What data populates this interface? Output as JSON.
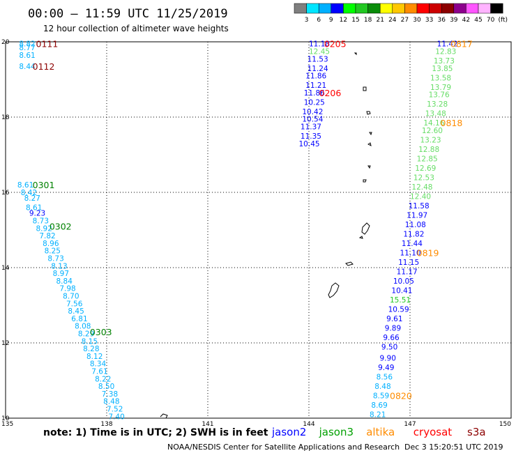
{
  "header": {
    "title": "00:00 – 11:59 UTC 11/25/2019",
    "subtitle": "12 hour collection of altimeter wave heights"
  },
  "scale": {
    "labels": [
      "3",
      "6",
      "9",
      "12",
      "15",
      "18",
      "21",
      "24",
      "27",
      "30",
      "33",
      "36",
      "39",
      "42",
      "45",
      "70"
    ],
    "unit": "(ft)",
    "colors": [
      "#7f7f7f",
      "#00e5ff",
      "#00b0ff",
      "#0000ff",
      "#00ff00",
      "#22c822",
      "#0a8c0a",
      "#ffff00",
      "#ffc800",
      "#ff8c00",
      "#ff0000",
      "#cc0000",
      "#8c0000",
      "#8c008c",
      "#ff55ff",
      "#ffb4ff",
      "#000000"
    ]
  },
  "axes": {
    "lon_labels": [
      "135",
      "138",
      "141",
      "144",
      "147",
      "150"
    ],
    "lat_labels": [
      "20",
      "18",
      "16",
      "14",
      "12",
      "10"
    ],
    "lon_range": [
      135,
      150
    ],
    "lat_range": [
      10,
      20
    ]
  },
  "footer": {
    "note": "note:  1) Time is in UTC;  2) SWH is in feet",
    "legend": [
      {
        "name": "jason2",
        "color": "#0000ff"
      },
      {
        "name": "jason3",
        "color": "#00a000"
      },
      {
        "name": "altika",
        "color": "#ff8c00"
      },
      {
        "name": "cryosat",
        "color": "#ff0000"
      },
      {
        "name": "s3a",
        "color": "#8c0000"
      }
    ],
    "credit": "NOAA/NESDIS Center for Satellite Applications and Research",
    "timestamp": "Dec  3 15:20:51 UTC 2019"
  },
  "chart_data": {
    "type": "scatter",
    "tracks": [
      {
        "time": "0111",
        "time_color": "#8c0000",
        "time_lon": 135.9,
        "time_lat": 19.95,
        "points": [
          {
            "lon": 135.4,
            "lat": 19.95,
            "v": "8.82",
            "color": "#00b0ff"
          },
          {
            "lon": 135.4,
            "lat": 19.85,
            "v": "8.77",
            "color": "#00b0ff"
          },
          {
            "lon": 135.4,
            "lat": 19.65,
            "v": "8.61",
            "color": "#00b0ff"
          },
          {
            "lon": 135.4,
            "lat": 19.35,
            "v": "8.44",
            "color": "#00b0ff"
          }
        ]
      },
      {
        "time": "0112",
        "time_color": "#8c0000",
        "time_lon": 135.8,
        "time_lat": 19.35,
        "points": []
      },
      {
        "time": "0301",
        "time_color": "#008000",
        "time_lon": 135.8,
        "time_lat": 16.2,
        "points": [
          {
            "lon": 135.35,
            "lat": 16.2,
            "v": "8.61",
            "color": "#00b0ff"
          },
          {
            "lon": 135.45,
            "lat": 16.0,
            "v": "8.42",
            "color": "#00b0ff"
          },
          {
            "lon": 135.55,
            "lat": 15.85,
            "v": "8.27",
            "color": "#00b0ff"
          },
          {
            "lon": 135.6,
            "lat": 15.6,
            "v": "8.61",
            "color": "#00b0ff"
          },
          {
            "lon": 135.7,
            "lat": 15.45,
            "v": "9.23",
            "color": "#0000ff"
          },
          {
            "lon": 135.8,
            "lat": 15.25,
            "v": "8.73",
            "color": "#00b0ff"
          }
        ]
      },
      {
        "time": "0302",
        "time_color": "#008000",
        "time_lon": 136.3,
        "time_lat": 15.1,
        "points": [
          {
            "lon": 135.9,
            "lat": 15.05,
            "v": "8.92",
            "color": "#00b0ff"
          },
          {
            "lon": 136.0,
            "lat": 14.85,
            "v": "7.82",
            "color": "#00b0ff"
          },
          {
            "lon": 136.1,
            "lat": 14.65,
            "v": "8.96",
            "color": "#00b0ff"
          },
          {
            "lon": 136.15,
            "lat": 14.45,
            "v": "8.25",
            "color": "#00b0ff"
          },
          {
            "lon": 136.25,
            "lat": 14.25,
            "v": "8.73",
            "color": "#00b0ff"
          },
          {
            "lon": 136.35,
            "lat": 14.05,
            "v": "8.13",
            "color": "#00b0ff"
          },
          {
            "lon": 136.4,
            "lat": 13.85,
            "v": "8.97",
            "color": "#00b0ff"
          },
          {
            "lon": 136.5,
            "lat": 13.65,
            "v": "8.84",
            "color": "#00b0ff"
          },
          {
            "lon": 136.6,
            "lat": 13.45,
            "v": "7.98",
            "color": "#00b0ff"
          },
          {
            "lon": 136.7,
            "lat": 13.25,
            "v": "8.70",
            "color": "#00b0ff"
          },
          {
            "lon": 136.8,
            "lat": 13.05,
            "v": "7.56",
            "color": "#00b0ff"
          },
          {
            "lon": 136.85,
            "lat": 12.85,
            "v": "8.45",
            "color": "#00b0ff"
          },
          {
            "lon": 136.95,
            "lat": 12.65,
            "v": "6.81",
            "color": "#00b0ff"
          },
          {
            "lon": 137.05,
            "lat": 12.45,
            "v": "8.08",
            "color": "#00b0ff"
          }
        ]
      },
      {
        "time": "0303",
        "time_color": "#008000",
        "time_lon": 137.5,
        "time_lat": 12.3,
        "points": [
          {
            "lon": 137.15,
            "lat": 12.25,
            "v": "8.29",
            "color": "#00b0ff"
          },
          {
            "lon": 137.25,
            "lat": 12.05,
            "v": "8.15",
            "color": "#00b0ff"
          },
          {
            "lon": 137.3,
            "lat": 11.85,
            "v": "8.28",
            "color": "#00b0ff"
          },
          {
            "lon": 137.4,
            "lat": 11.65,
            "v": "8.12",
            "color": "#00b0ff"
          },
          {
            "lon": 137.5,
            "lat": 11.45,
            "v": "8.34",
            "color": "#00b0ff"
          },
          {
            "lon": 137.55,
            "lat": 11.25,
            "v": "7.61",
            "color": "#00b0ff"
          },
          {
            "lon": 137.65,
            "lat": 11.05,
            "v": "8.22",
            "color": "#00b0ff"
          },
          {
            "lon": 137.75,
            "lat": 10.85,
            "v": "8.50",
            "color": "#00b0ff"
          },
          {
            "lon": 137.85,
            "lat": 10.65,
            "v": "7.38",
            "color": "#00b0ff"
          },
          {
            "lon": 137.9,
            "lat": 10.45,
            "v": "8.48",
            "color": "#00b0ff"
          },
          {
            "lon": 138.0,
            "lat": 10.25,
            "v": "7.52",
            "color": "#00b0ff"
          },
          {
            "lon": 138.05,
            "lat": 10.05,
            "v": "7.40",
            "color": "#00b0ff"
          }
        ]
      },
      {
        "time": "0205",
        "time_color": "#ff0000",
        "time_lon": 144.45,
        "time_lat": 19.95,
        "points": [
          {
            "lon": 144.0,
            "lat": 19.95,
            "v": "11.18",
            "color": "#0000ff"
          },
          {
            "lon": 144.0,
            "lat": 19.75,
            "v": "12.45",
            "color": "#66dd66"
          },
          {
            "lon": 143.95,
            "lat": 19.55,
            "v": "11.53",
            "color": "#0000ff"
          },
          {
            "lon": 143.95,
            "lat": 19.3,
            "v": "11.24",
            "color": "#0000ff"
          },
          {
            "lon": 143.9,
            "lat": 19.1,
            "v": "11.86",
            "color": "#0000ff"
          },
          {
            "lon": 143.9,
            "lat": 18.85,
            "v": "11.21",
            "color": "#0000ff"
          },
          {
            "lon": 143.85,
            "lat": 18.65,
            "v": "11.86",
            "color": "#0000ff"
          }
        ]
      },
      {
        "time": "0206",
        "time_color": "#ff0000",
        "time_lon": 144.3,
        "time_lat": 18.65,
        "points": [
          {
            "lon": 143.85,
            "lat": 18.4,
            "v": "10.25",
            "color": "#0000ff"
          },
          {
            "lon": 143.8,
            "lat": 18.15,
            "v": "10.42",
            "color": "#0000ff"
          },
          {
            "lon": 143.8,
            "lat": 17.95,
            "v": "10.54",
            "color": "#0000ff"
          },
          {
            "lon": 143.75,
            "lat": 17.75,
            "v": "11.37",
            "color": "#0000ff"
          },
          {
            "lon": 143.75,
            "lat": 17.5,
            "v": "11.35",
            "color": "#0000ff"
          },
          {
            "lon": 143.7,
            "lat": 17.3,
            "v": "10.45",
            "color": "#0000ff"
          }
        ]
      },
      {
        "time": "0817",
        "time_color": "#ff8c00",
        "time_lon": 148.2,
        "time_lat": 19.95,
        "points": [
          {
            "lon": 147.8,
            "lat": 19.95,
            "v": "11.42",
            "color": "#0000ff"
          },
          {
            "lon": 147.75,
            "lat": 19.75,
            "v": "12.83",
            "color": "#66dd66"
          },
          {
            "lon": 147.7,
            "lat": 19.5,
            "v": "13.73",
            "color": "#66dd66"
          },
          {
            "lon": 147.65,
            "lat": 19.3,
            "v": "13.85",
            "color": "#66dd66"
          },
          {
            "lon": 147.6,
            "lat": 19.05,
            "v": "13.58",
            "color": "#66dd66"
          },
          {
            "lon": 147.6,
            "lat": 18.8,
            "v": "13.79",
            "color": "#66dd66"
          },
          {
            "lon": 147.55,
            "lat": 18.6,
            "v": "13.76",
            "color": "#66dd66"
          },
          {
            "lon": 147.5,
            "lat": 18.35,
            "v": "13.28",
            "color": "#66dd66"
          },
          {
            "lon": 147.45,
            "lat": 18.1,
            "v": "13.48",
            "color": "#66dd66"
          }
        ]
      },
      {
        "time": "0818",
        "time_color": "#ff8c00",
        "time_lon": 147.9,
        "time_lat": 17.85,
        "points": [
          {
            "lon": 147.4,
            "lat": 17.85,
            "v": "14.16",
            "color": "#66dd66"
          },
          {
            "lon": 147.35,
            "lat": 17.65,
            "v": "12.60",
            "color": "#66dd66"
          },
          {
            "lon": 147.3,
            "lat": 17.4,
            "v": "13.23",
            "color": "#66dd66"
          },
          {
            "lon": 147.25,
            "lat": 17.15,
            "v": "12.88",
            "color": "#66dd66"
          },
          {
            "lon": 147.2,
            "lat": 16.9,
            "v": "12.85",
            "color": "#66dd66"
          },
          {
            "lon": 147.15,
            "lat": 16.65,
            "v": "12.69",
            "color": "#66dd66"
          },
          {
            "lon": 147.1,
            "lat": 16.4,
            "v": "12.53",
            "color": "#66dd66"
          },
          {
            "lon": 147.05,
            "lat": 16.15,
            "v": "12.48",
            "color": "#66dd66"
          },
          {
            "lon": 147.0,
            "lat": 15.9,
            "v": "12.40",
            "color": "#66dd66"
          },
          {
            "lon": 146.95,
            "lat": 15.65,
            "v": "11.58",
            "color": "#0000ff"
          },
          {
            "lon": 146.9,
            "lat": 15.4,
            "v": "11.97",
            "color": "#0000ff"
          },
          {
            "lon": 146.85,
            "lat": 15.15,
            "v": "11.08",
            "color": "#0000ff"
          },
          {
            "lon": 146.8,
            "lat": 14.9,
            "v": "11.82",
            "color": "#0000ff"
          },
          {
            "lon": 146.75,
            "lat": 14.65,
            "v": "11.44",
            "color": "#0000ff"
          }
        ]
      },
      {
        "time": "0819",
        "time_color": "#ff8c00",
        "time_lon": 147.2,
        "time_lat": 14.4,
        "points": [
          {
            "lon": 146.7,
            "lat": 14.4,
            "v": "11.10",
            "color": "#0000ff"
          },
          {
            "lon": 146.65,
            "lat": 14.15,
            "v": "11.15",
            "color": "#0000ff"
          },
          {
            "lon": 146.6,
            "lat": 13.9,
            "v": "11.17",
            "color": "#0000ff"
          },
          {
            "lon": 146.5,
            "lat": 13.65,
            "v": "10.05",
            "color": "#0000ff"
          },
          {
            "lon": 146.45,
            "lat": 13.4,
            "v": "10.41",
            "color": "#0000ff"
          },
          {
            "lon": 146.4,
            "lat": 13.15,
            "v": "15.51",
            "color": "#22c822"
          },
          {
            "lon": 146.35,
            "lat": 12.9,
            "v": "10.59",
            "color": "#0000ff"
          },
          {
            "lon": 146.3,
            "lat": 12.65,
            "v": "9.61",
            "color": "#0000ff"
          },
          {
            "lon": 146.25,
            "lat": 12.4,
            "v": "9.89",
            "color": "#0000ff"
          },
          {
            "lon": 146.2,
            "lat": 12.15,
            "v": "9.66",
            "color": "#0000ff"
          },
          {
            "lon": 146.15,
            "lat": 11.9,
            "v": "9.50",
            "color": "#0000ff"
          },
          {
            "lon": 146.1,
            "lat": 11.6,
            "v": "9.90",
            "color": "#0000ff"
          },
          {
            "lon": 146.05,
            "lat": 11.35,
            "v": "9.49",
            "color": "#0000ff"
          },
          {
            "lon": 146.0,
            "lat": 11.1,
            "v": "8.56",
            "color": "#00b0ff"
          },
          {
            "lon": 145.95,
            "lat": 10.85,
            "v": "8.48",
            "color": "#00b0ff"
          }
        ]
      },
      {
        "time": "0820",
        "time_color": "#ff8c00",
        "time_lon": 146.4,
        "time_lat": 10.6,
        "points": [
          {
            "lon": 145.9,
            "lat": 10.6,
            "v": "8.59",
            "color": "#00b0ff"
          },
          {
            "lon": 145.85,
            "lat": 10.35,
            "v": "8.69",
            "color": "#00b0ff"
          },
          {
            "lon": 145.8,
            "lat": 10.1,
            "v": "8.21",
            "color": "#00b0ff"
          }
        ]
      }
    ]
  }
}
